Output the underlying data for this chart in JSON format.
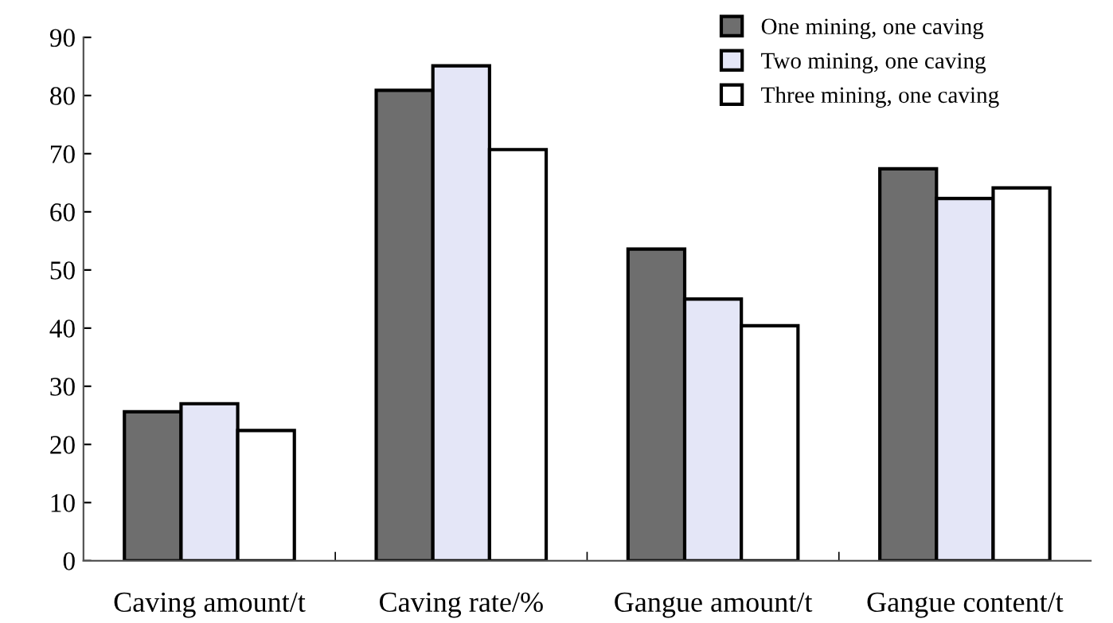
{
  "chart_data": {
    "type": "bar",
    "categories": [
      "Caving amount/t",
      "Caving rate/%",
      "Gangue amount/t",
      "Gangue content/t"
    ],
    "series": [
      {
        "name": "One mining, one caving",
        "color": "#6e6e6e",
        "values": [
          25.6,
          80.9,
          53.6,
          67.4
        ]
      },
      {
        "name": "Two mining, one caving",
        "color": "#e4e6f7",
        "values": [
          27.0,
          85.1,
          45.0,
          62.3
        ]
      },
      {
        "name": "Three mining, one caving",
        "color": "#ffffff",
        "values": [
          22.4,
          70.7,
          40.4,
          64.1
        ]
      }
    ],
    "ylim": [
      0,
      90
    ],
    "yticks": [
      0,
      10,
      20,
      30,
      40,
      50,
      60,
      70,
      80,
      90
    ],
    "grid": false,
    "legend": "top right"
  }
}
